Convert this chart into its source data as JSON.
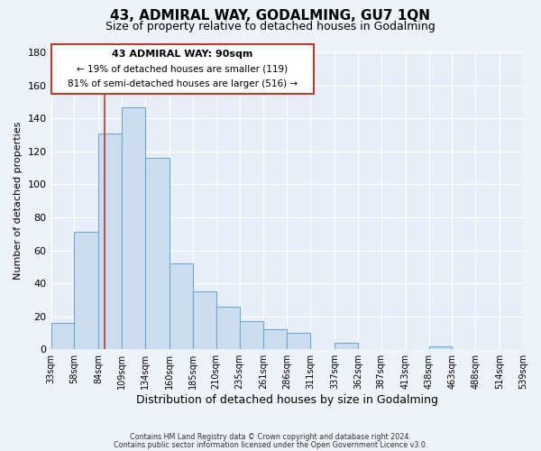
{
  "title": "43, ADMIRAL WAY, GODALMING, GU7 1QN",
  "subtitle": "Size of property relative to detached houses in Godalming",
  "xlabel": "Distribution of detached houses by size in Godalming",
  "ylabel": "Number of detached properties",
  "bar_vals_20": [
    16,
    71,
    131,
    147,
    116,
    52,
    35,
    26,
    17,
    12,
    10,
    0,
    4,
    0,
    0,
    0,
    2,
    0,
    0,
    0
  ],
  "bar_labels": [
    "33sqm",
    "58sqm",
    "84sqm",
    "109sqm",
    "134sqm",
    "160sqm",
    "185sqm",
    "210sqm",
    "235sqm",
    "261sqm",
    "286sqm",
    "311sqm",
    "337sqm",
    "362sqm",
    "387sqm",
    "413sqm",
    "438sqm",
    "463sqm",
    "488sqm",
    "514sqm",
    "539sqm"
  ],
  "bar_color": "#cdddf0",
  "bar_edge_color": "#6aaad4",
  "background_color": "#eef2f9",
  "plot_bg_color": "#e8eef8",
  "ylim": [
    0,
    180
  ],
  "yticks": [
    0,
    20,
    40,
    60,
    80,
    100,
    120,
    140,
    160,
    180
  ],
  "red_line_x": 90,
  "bin_edges": [
    33,
    58,
    84,
    109,
    134,
    160,
    185,
    210,
    235,
    261,
    286,
    311,
    337,
    362,
    387,
    413,
    438,
    463,
    488,
    514,
    539
  ],
  "annotation_title": "43 ADMIRAL WAY: 90sqm",
  "annotation_line1": "← 19% of detached houses are smaller (119)",
  "annotation_line2": "81% of semi-detached houses are larger (516) →",
  "footer1": "Contains HM Land Registry data © Crown copyright and database right 2024.",
  "footer2": "Contains public sector information licensed under the Open Government Licence v3.0.",
  "title_fontsize": 11,
  "subtitle_fontsize": 9,
  "xlabel_fontsize": 9,
  "ylabel_fontsize": 8
}
